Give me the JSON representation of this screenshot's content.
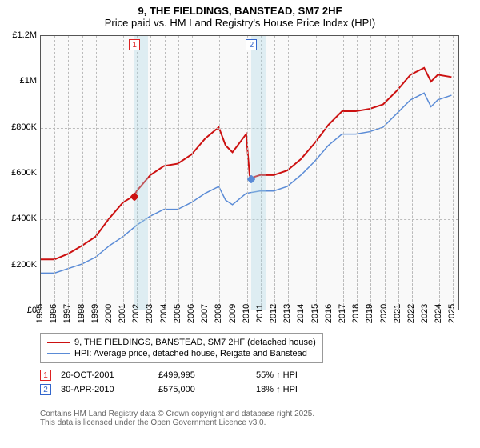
{
  "title": {
    "line1": "9, THE FIELDINGS, BANSTEAD, SM7 2HF",
    "line2": "Price paid vs. HM Land Registry's House Price Index (HPI)",
    "fontsize": 13
  },
  "chart": {
    "type": "line",
    "background_color": "#f9f9f9",
    "border_color": "#555555",
    "grid_color": "#bbbbbb",
    "x_years": [
      1995,
      1996,
      1997,
      1998,
      1999,
      2000,
      2001,
      2002,
      2003,
      2004,
      2005,
      2006,
      2007,
      2008,
      2009,
      2010,
      2011,
      2012,
      2013,
      2014,
      2015,
      2016,
      2017,
      2018,
      2019,
      2020,
      2021,
      2022,
      2023,
      2024,
      2025
    ],
    "xlim": [
      1995,
      2025.5
    ],
    "ylim": [
      0,
      1200000
    ],
    "yticks": [
      0,
      200000,
      400000,
      600000,
      800000,
      1000000,
      1200000
    ],
    "ytick_labels": [
      "£0",
      "£200K",
      "£400K",
      "£600K",
      "£800K",
      "£1M",
      "£1.2M"
    ],
    "highlight_bands": [
      {
        "start": 2001.82,
        "end": 2002.82,
        "color": "rgba(173,216,230,0.35)"
      },
      {
        "start": 2010.33,
        "end": 2011.33,
        "color": "rgba(173,216,230,0.35)"
      }
    ],
    "flags": [
      {
        "label": "1",
        "pos_year": 2001.82,
        "pos_val": 1160000,
        "color": "red"
      },
      {
        "label": "2",
        "pos_year": 2010.33,
        "pos_val": 1160000,
        "color": "blue"
      }
    ],
    "series": [
      {
        "name": "9, THE FIELDINGS, BANSTEAD, SM7 2HF (detached house)",
        "color": "#cc1111",
        "line_width": 2,
        "y_by_year": {
          "1995": 220000,
          "1996": 220000,
          "1997": 245000,
          "1998": 280000,
          "1999": 320000,
          "2000": 400000,
          "2001": 470000,
          "2001.82": 500000,
          "2002": 520000,
          "2003": 590000,
          "2004": 630000,
          "2005": 640000,
          "2006": 680000,
          "2007": 750000,
          "2008": 800000,
          "2008.5": 720000,
          "2009": 690000,
          "2009.5": 730000,
          "2010": 770000,
          "2010.25": 590000,
          "2010.33": 575000,
          "2010.5": 580000,
          "2011": 590000,
          "2012": 590000,
          "2013": 610000,
          "2014": 660000,
          "2015": 730000,
          "2016": 810000,
          "2017": 870000,
          "2018": 870000,
          "2019": 880000,
          "2020": 900000,
          "2021": 960000,
          "2022": 1030000,
          "2023": 1060000,
          "2023.5": 1000000,
          "2024": 1030000,
          "2025": 1020000
        }
      },
      {
        "name": "HPI: Average price, detached house, Reigate and Banstead",
        "color": "#5a8bd6",
        "line_width": 1.5,
        "y_by_year": {
          "1995": 160000,
          "1996": 160000,
          "1997": 180000,
          "1998": 200000,
          "1999": 230000,
          "2000": 280000,
          "2001": 320000,
          "2002": 370000,
          "2003": 410000,
          "2004": 440000,
          "2005": 440000,
          "2006": 470000,
          "2007": 510000,
          "2008": 540000,
          "2008.5": 480000,
          "2009": 460000,
          "2010": 510000,
          "2011": 520000,
          "2012": 520000,
          "2013": 540000,
          "2014": 590000,
          "2015": 650000,
          "2016": 720000,
          "2017": 770000,
          "2018": 770000,
          "2019": 780000,
          "2020": 800000,
          "2021": 860000,
          "2022": 920000,
          "2023": 950000,
          "2023.5": 890000,
          "2024": 920000,
          "2025": 940000
        }
      }
    ],
    "sale_markers": [
      {
        "year": 2001.82,
        "value": 499995,
        "color": "#cc1111"
      },
      {
        "year": 2010.33,
        "value": 575000,
        "color": "#5a8bd6"
      }
    ]
  },
  "legend": {
    "items": [
      {
        "color": "#cc1111",
        "label": "9, THE FIELDINGS, BANSTEAD, SM7 2HF (detached house)"
      },
      {
        "color": "#5a8bd6",
        "label": "HPI: Average price, detached house, Reigate and Banstead"
      }
    ]
  },
  "footer": {
    "rows": [
      {
        "flag": "1",
        "flag_color": "red",
        "date": "26-OCT-2001",
        "price": "£499,995",
        "delta": "55% ↑ HPI"
      },
      {
        "flag": "2",
        "flag_color": "blue",
        "date": "30-APR-2010",
        "price": "£575,000",
        "delta": "18% ↑ HPI"
      }
    ],
    "attribution": [
      "Contains HM Land Registry data © Crown copyright and database right 2025.",
      "This data is licensed under the Open Government Licence v3.0."
    ]
  }
}
